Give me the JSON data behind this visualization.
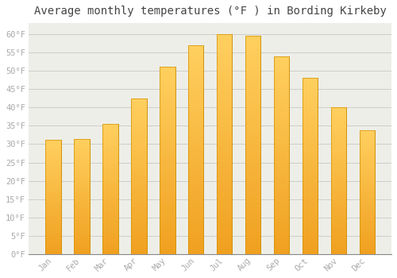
{
  "months": [
    "Jan",
    "Feb",
    "Mar",
    "Apr",
    "May",
    "Jun",
    "Jul",
    "Aug",
    "Sep",
    "Oct",
    "Nov",
    "Dec"
  ],
  "values": [
    31.2,
    31.5,
    35.6,
    42.5,
    51.0,
    57.0,
    60.0,
    59.5,
    54.0,
    48.0,
    40.0,
    33.8
  ],
  "bar_color_top": "#FFD060",
  "bar_color_bottom": "#F0A020",
  "bar_edge_color": "#D09000",
  "plot_bg_color": "#EEEEE8",
  "figure_bg_color": "#FFFFFF",
  "grid_color": "#CCCCCC",
  "title": "Average monthly temperatures (°F ) in Bording Kirkeby",
  "title_fontsize": 10,
  "tick_label_color": "#AAAAAA",
  "ylabel_ticks": [
    0,
    5,
    10,
    15,
    20,
    25,
    30,
    35,
    40,
    45,
    50,
    55,
    60
  ],
  "ylim": [
    0,
    63
  ],
  "font_family": "monospace",
  "bar_width": 0.55
}
